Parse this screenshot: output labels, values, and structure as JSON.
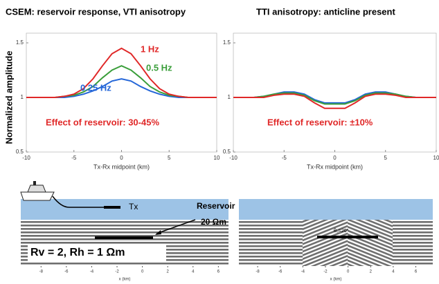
{
  "chart_data": [
    {
      "type": "line",
      "title": "CSEM: reservoir response, VTI anisotropy",
      "ylabel": "Normalized amplitude",
      "xlabel": "Tx-Rx midpoint (km)",
      "xlim": [
        -10,
        10
      ],
      "xticks": [
        -10,
        -5,
        0,
        5,
        10
      ],
      "ylim": [
        0.5,
        1.5
      ],
      "yticks": [
        0.5,
        1,
        1.5
      ],
      "annotation": "Effect of reservoir: 30-45%",
      "x": [
        -10,
        -9,
        -8,
        -7,
        -6,
        -5,
        -4,
        -3,
        -2,
        -1,
        0,
        1,
        2,
        3,
        4,
        5,
        6,
        7,
        8,
        9,
        10
      ],
      "series": [
        {
          "name": "1 Hz",
          "color": "#e02828",
          "values": [
            1,
            1,
            1,
            1,
            1.01,
            1.03,
            1.08,
            1.17,
            1.29,
            1.4,
            1.45,
            1.4,
            1.29,
            1.17,
            1.08,
            1.03,
            1.01,
            1,
            1,
            1,
            1
          ]
        },
        {
          "name": "0.5 Hz",
          "color": "#3a9e3a",
          "values": [
            1,
            1,
            1,
            1,
            1.01,
            1.02,
            1.05,
            1.1,
            1.18,
            1.25,
            1.29,
            1.25,
            1.18,
            1.1,
            1.05,
            1.02,
            1.01,
            1,
            1,
            1,
            1
          ]
        },
        {
          "name": "0.25 Hz",
          "color": "#2466d8",
          "values": [
            1,
            1,
            1,
            1,
            1,
            1.01,
            1.03,
            1.06,
            1.1,
            1.15,
            1.17,
            1.15,
            1.1,
            1.06,
            1.03,
            1.01,
            1,
            1,
            1,
            1,
            1
          ]
        }
      ]
    },
    {
      "type": "line",
      "title": "TTI anisotropy: anticline present",
      "xlabel": "Tx-Rx midpoint (km)",
      "xlim": [
        -10,
        10
      ],
      "xticks": [
        -10,
        -5,
        0,
        5,
        10
      ],
      "ylim": [
        0.5,
        1.5
      ],
      "yticks": [
        0.5,
        1,
        1.5
      ],
      "annotation": "Effect of reservoir: ±10%",
      "x": [
        -10,
        -9,
        -8,
        -7,
        -6,
        -5,
        -4,
        -3,
        -2,
        -1,
        0,
        1,
        2,
        3,
        4,
        5,
        6,
        7,
        8,
        9,
        10
      ],
      "series": [
        {
          "color": "#e02828",
          "values": [
            1,
            1,
            1,
            1,
            1.02,
            1.03,
            1.03,
            1.01,
            0.95,
            0.9,
            0.9,
            0.9,
            0.95,
            1.01,
            1.03,
            1.03,
            1.02,
            1,
            1,
            1,
            1
          ]
        },
        {
          "color": "#3a9e3a",
          "values": [
            1,
            1,
            1,
            1.01,
            1.03,
            1.04,
            1.04,
            1.02,
            0.97,
            0.94,
            0.94,
            0.94,
            0.97,
            1.02,
            1.04,
            1.04,
            1.03,
            1.01,
            1,
            1,
            1
          ]
        },
        {
          "color": "#2466d8",
          "values": [
            1,
            1,
            1,
            1.01,
            1.03,
            1.05,
            1.05,
            1.03,
            0.98,
            0.95,
            0.95,
            0.95,
            0.98,
            1.03,
            1.05,
            1.05,
            1.03,
            1.01,
            1,
            1,
            1
          ]
        }
      ]
    }
  ],
  "diagrams": [
    {
      "xlabel": "x (km)",
      "xlim": [
        -9.6,
        6.8
      ],
      "xticks": [
        -8,
        -6,
        -4,
        -2,
        0,
        2,
        4,
        6
      ],
      "tx": "Tx",
      "reservoir": "Reservoir",
      "resistivity": "20 Ωm",
      "params": "Rv = 2,  Rh = 1 Ωm"
    },
    {
      "xlabel": "x (km)",
      "xlim": [
        -9.66,
        7.5
      ],
      "xticks": [
        -8,
        -6,
        -4,
        -2,
        0,
        2,
        4,
        6
      ],
      "dip": "θ₀=20°"
    }
  ]
}
